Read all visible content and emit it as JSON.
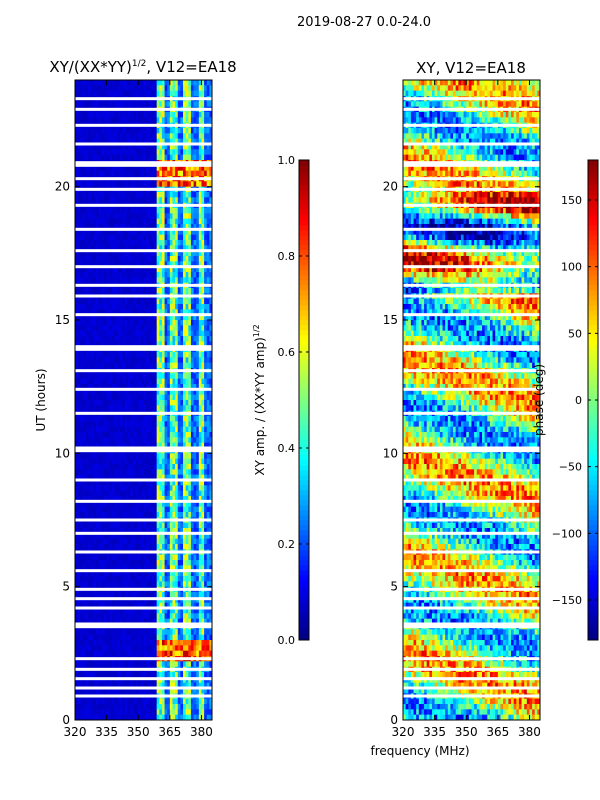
{
  "suptitle": "2019-08-27 0.0-24.0",
  "shared_xlabel": "frequency (MHz)",
  "chart_data": [
    {
      "type": "heatmap",
      "title_main": "XY/(XX*YY)",
      "title_exp": "1/2",
      "title_rest": ", V12=EA18",
      "ylabel": "UT (hours)",
      "xlim": [
        320,
        385
      ],
      "ylim": [
        0,
        24
      ],
      "xticks": [
        320,
        335,
        350,
        365,
        380
      ],
      "yticks": [
        0,
        5,
        10,
        15,
        20
      ],
      "colorbar": {
        "label_main": "XY amp. / (XX*YY amp)",
        "label_exp": "1/2",
        "range": [
          0.0,
          1.0
        ],
        "ticks": [
          "0.0",
          "0.2",
          "0.4",
          "0.6",
          "0.8",
          "1.0"
        ],
        "tick_values": [
          0.0,
          0.2,
          0.4,
          0.6,
          0.8,
          1.0
        ]
      },
      "colormap": "jet",
      "flagged_rows_hours": [
        0.9,
        1.2,
        1.55,
        1.9,
        2.3,
        3.5,
        3.6,
        4.2,
        4.55,
        4.9,
        5.6,
        6.3,
        7.0,
        7.5,
        8.2,
        9.0,
        10.1,
        10.2,
        11.5,
        12.4,
        13.1,
        13.9,
        14.0,
        15.2,
        15.9,
        16.3,
        17.0,
        17.6,
        18.4,
        19.3,
        19.9,
        20.3,
        20.8,
        20.9,
        21.6,
        22.3,
        22.9,
        23.3
      ]
    },
    {
      "type": "heatmap",
      "title_main": "XY, V12=EA18",
      "xlim": [
        320,
        385
      ],
      "ylim": [
        0,
        24
      ],
      "xticks": [
        320,
        335,
        350,
        365,
        380
      ],
      "yticks": [
        0,
        5,
        10,
        15,
        20
      ],
      "colorbar": {
        "label_main": "phase (deg)",
        "range": [
          -180,
          180
        ],
        "ticks": [
          "−150",
          "−100",
          "−50",
          "0",
          "50",
          "100",
          "150"
        ],
        "tick_values": [
          -150,
          -100,
          -50,
          0,
          50,
          100,
          150
        ]
      },
      "colormap": "jet",
      "flagged_rows_hours": [
        0.9,
        1.2,
        1.55,
        1.9,
        2.3,
        3.5,
        3.6,
        4.2,
        4.55,
        4.9,
        5.6,
        6.3,
        7.0,
        7.5,
        8.2,
        9.0,
        10.1,
        10.2,
        11.5,
        12.4,
        13.1,
        13.9,
        14.0,
        15.2,
        15.9,
        16.3,
        17.0,
        17.6,
        18.4,
        19.3,
        19.9,
        20.3,
        20.8,
        20.9,
        21.6,
        22.3,
        22.9,
        23.3
      ]
    }
  ]
}
